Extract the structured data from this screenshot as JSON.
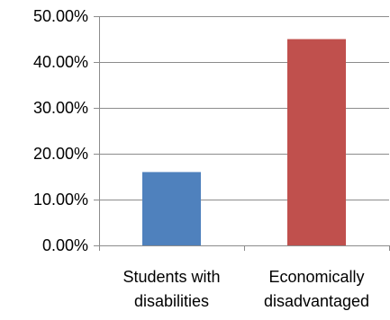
{
  "chart_data": {
    "type": "bar",
    "categories": [
      [
        "Students with",
        "disabilities"
      ],
      [
        "Economically",
        "disadvantaged"
      ]
    ],
    "values": [
      16.0,
      45.0
    ],
    "bar_colors": [
      "#4f81bd",
      "#c0504d"
    ],
    "yticks": [
      "0.00%",
      "10.00%",
      "20.00%",
      "30.00%",
      "40.00%",
      "50.00%"
    ],
    "ylim": [
      0,
      50
    ],
    "grid": true,
    "legend": "none",
    "title": "",
    "xlabel": "",
    "ylabel": ""
  }
}
